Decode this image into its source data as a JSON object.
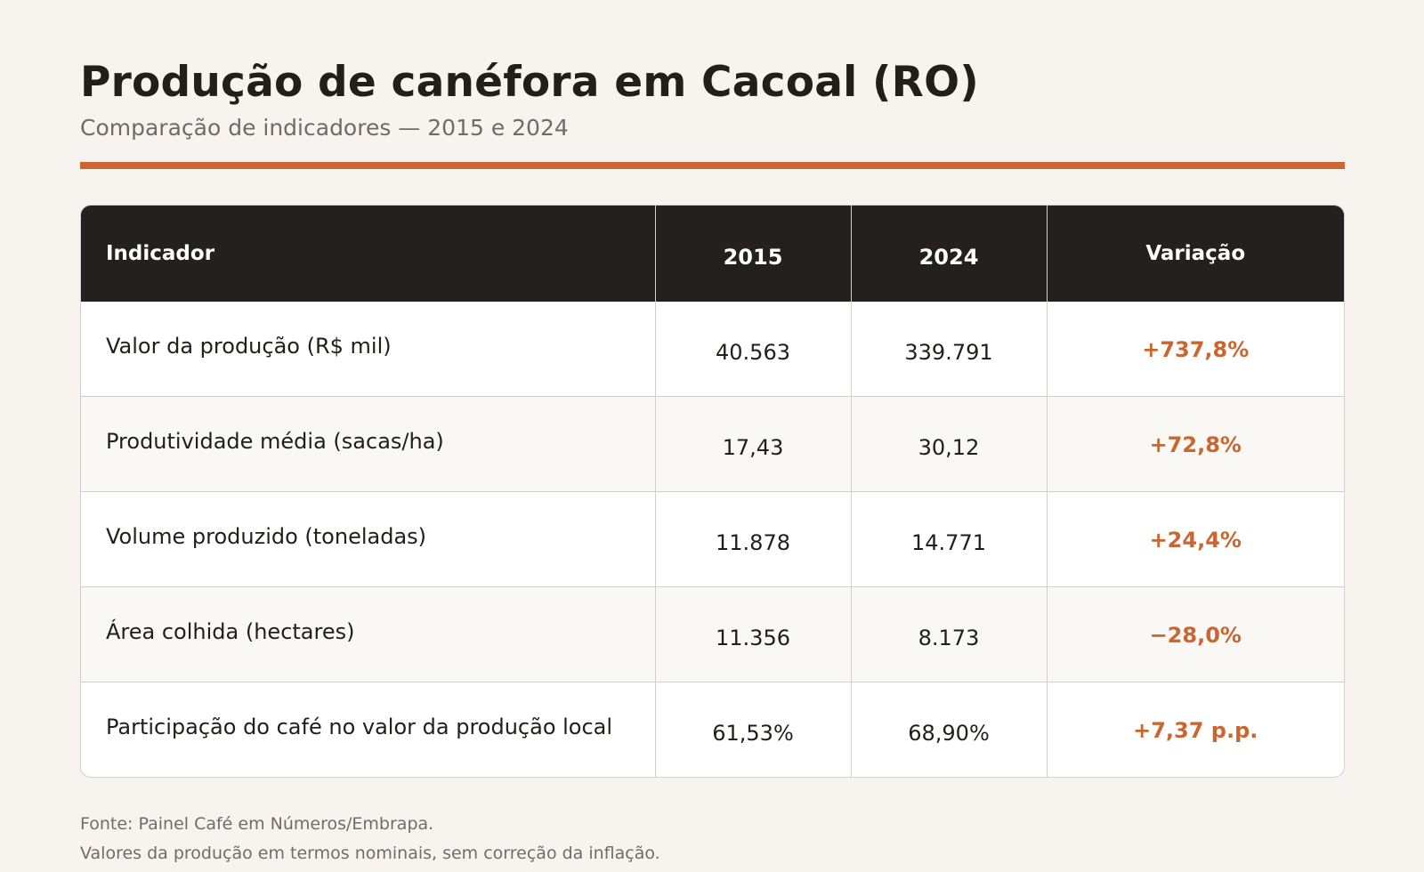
{
  "header": {
    "title": "Produção de canéfora em Cacoal (RO)",
    "subtitle": "Comparação de indicadores — 2015 e 2024"
  },
  "colors": {
    "background": "#f7f3ee",
    "accent": "#cc6633",
    "header_bg": "#252020",
    "variation_text": "#c96631"
  },
  "table": {
    "columns": [
      "Indicador",
      "2015",
      "2024",
      "Variação"
    ],
    "rows": [
      {
        "indicator": "Valor da produção (R$ mil)",
        "v2015": "40.563",
        "v2024": "339.791",
        "variation": "+737,8%"
      },
      {
        "indicator": "Produtividade média (sacas/ha)",
        "v2015": "17,43",
        "v2024": "30,12",
        "variation": "+72,8%"
      },
      {
        "indicator": "Volume produzido (toneladas)",
        "v2015": "11.878",
        "v2024": "14.771",
        "variation": "+24,4%"
      },
      {
        "indicator": "Área colhida (hectares)",
        "v2015": "11.356",
        "v2024": "8.173",
        "variation": "−28,0%"
      },
      {
        "indicator": "Participação do café no valor da produção local",
        "v2015": "61,53%",
        "v2024": "68,90%",
        "variation": "+7,37 p.p."
      }
    ]
  },
  "footer": {
    "source": "Fonte: Painel Café em Números/Embrapa.",
    "note": "Valores da produção em termos nominais, sem correção da inflação."
  }
}
